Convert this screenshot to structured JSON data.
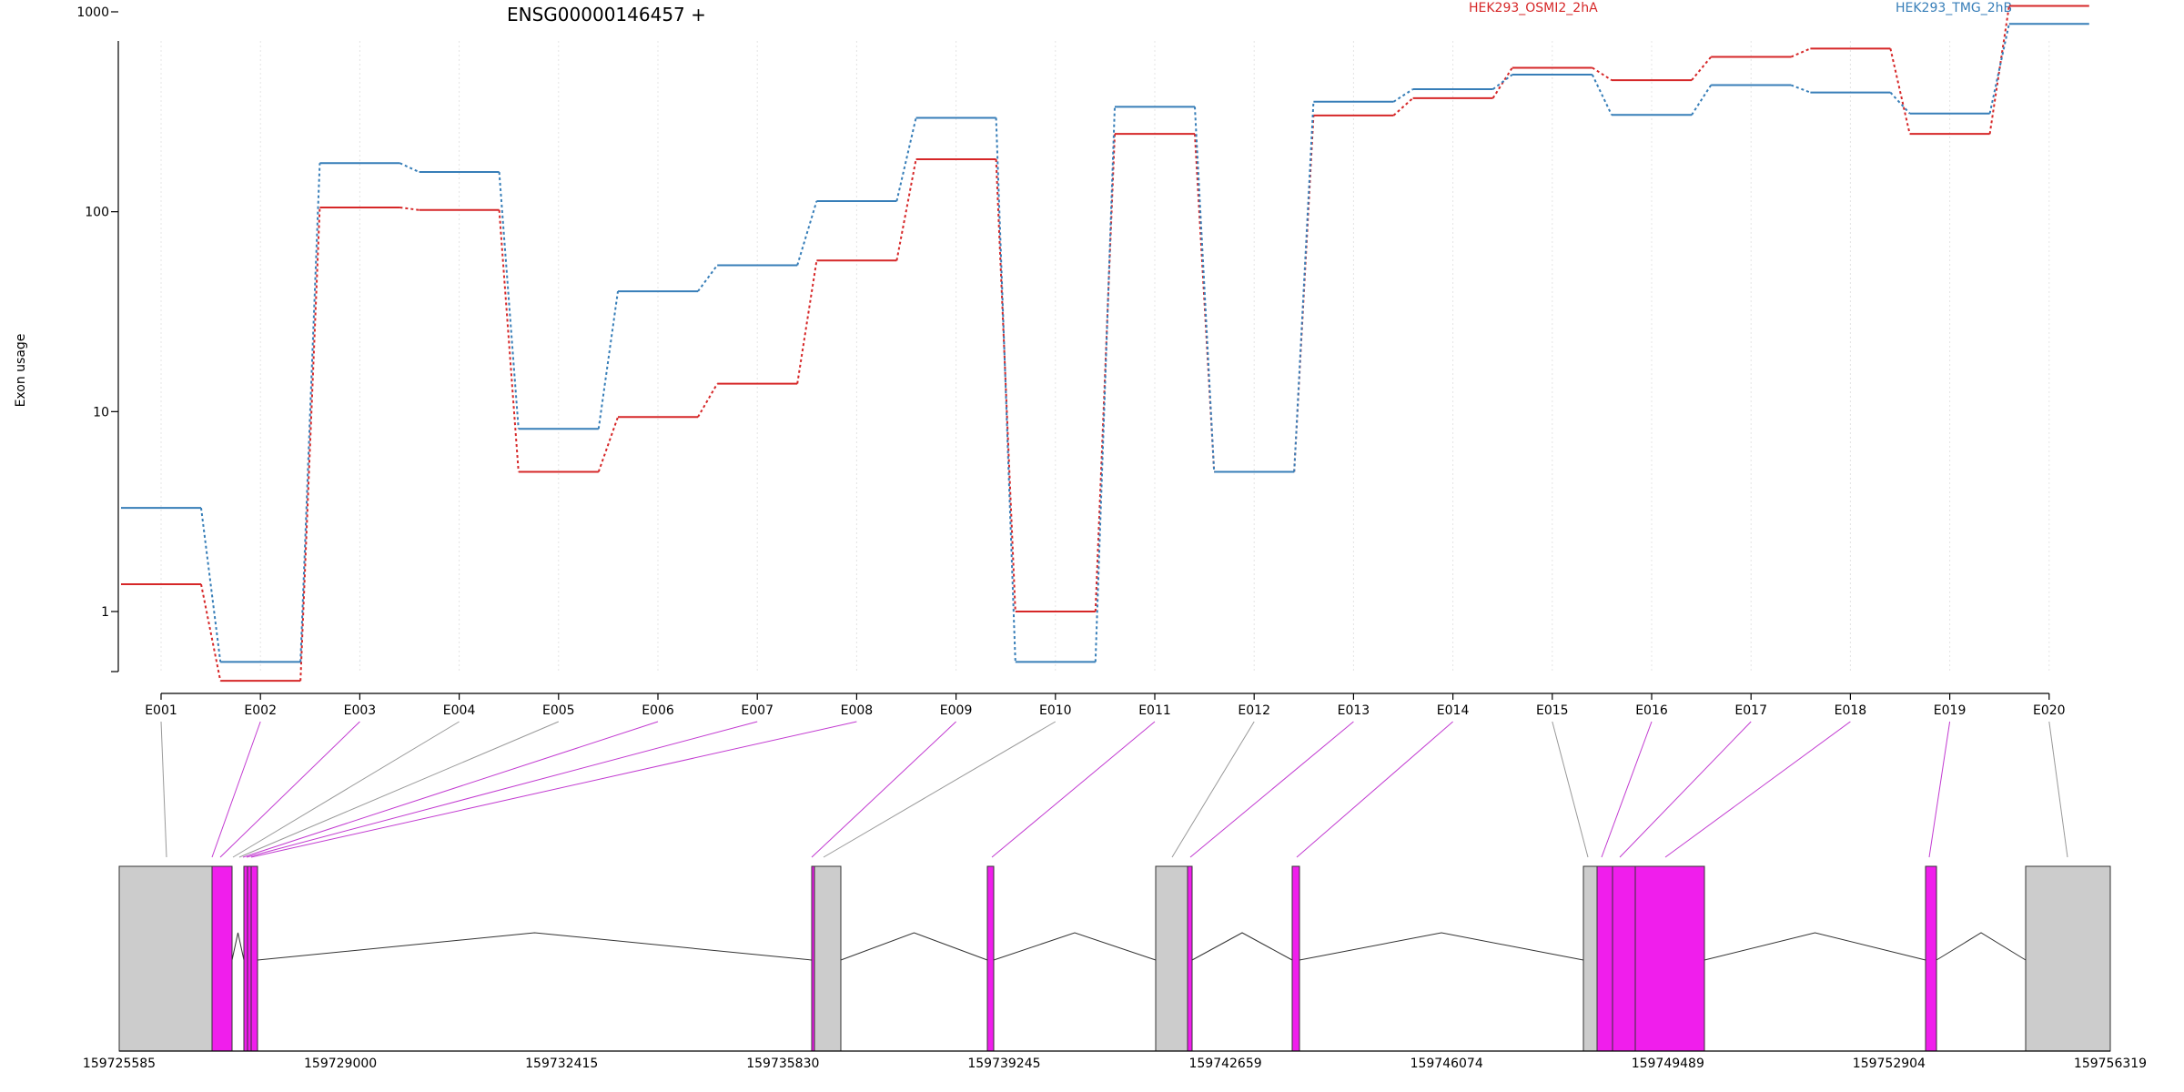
{
  "chart_data": {
    "type": "line",
    "title": "ENSG00000146457 +",
    "xlabel": "",
    "ylabel": "Exon usage",
    "y_scale": "log",
    "yticks": [
      1,
      10,
      100,
      1000
    ],
    "ytick_labels": [
      "1",
      "10",
      "100",
      "1000"
    ],
    "grid": "vertical gridlines at exon positions",
    "legend_placement": "top",
    "categories": [
      "E001",
      "E002",
      "E003",
      "E004",
      "E005",
      "E006",
      "E007",
      "E008",
      "E009",
      "E010",
      "E011",
      "E012",
      "E013",
      "E014",
      "E015",
      "E016",
      "E017",
      "E018",
      "E019",
      "E020"
    ],
    "series": [
      {
        "name": "HEK293_OSMI2_2hA",
        "color": "#d62728",
        "values": [
          1.37,
          0.45,
          105,
          102,
          5.0,
          9.4,
          13.8,
          57,
          183,
          1.0,
          245,
          5.0,
          303,
          370,
          525,
          455,
          595,
          655,
          245,
          1070
        ]
      },
      {
        "name": "HEK293_TMG_2hB",
        "color": "#377eb8",
        "values": [
          3.3,
          0.56,
          175,
          158,
          8.2,
          40,
          54,
          113,
          295,
          0.56,
          335,
          5.0,
          355,
          410,
          485,
          305,
          430,
          395,
          310,
          870
        ]
      }
    ],
    "gene_model": {
      "coordinate_labels": [
        "159725585",
        "159729000",
        "159732415",
        "159735830",
        "159739245",
        "159742659",
        "159746074",
        "159749489",
        "159752904",
        "159756319"
      ],
      "exon_colors": {
        "significant": "#f01eec",
        "not_significant": "#cccccc"
      },
      "exons": [
        {
          "id": "E001",
          "significant": false
        },
        {
          "id": "E002",
          "significant": true
        },
        {
          "id": "E003",
          "significant": true
        },
        {
          "id": "E004",
          "significant": false
        },
        {
          "id": "E005",
          "significant": false
        },
        {
          "id": "E006",
          "significant": true
        },
        {
          "id": "E007",
          "significant": true
        },
        {
          "id": "E008",
          "significant": true
        },
        {
          "id": "E009",
          "significant": true
        },
        {
          "id": "E010",
          "significant": false
        },
        {
          "id": "E011",
          "significant": true
        },
        {
          "id": "E012",
          "significant": false
        },
        {
          "id": "E013",
          "significant": true
        },
        {
          "id": "E014",
          "significant": true
        },
        {
          "id": "E015",
          "significant": false
        },
        {
          "id": "E016",
          "significant": true
        },
        {
          "id": "E017",
          "significant": true
        },
        {
          "id": "E018",
          "significant": true
        },
        {
          "id": "E019",
          "significant": true
        },
        {
          "id": "E020",
          "significant": false
        }
      ]
    }
  }
}
